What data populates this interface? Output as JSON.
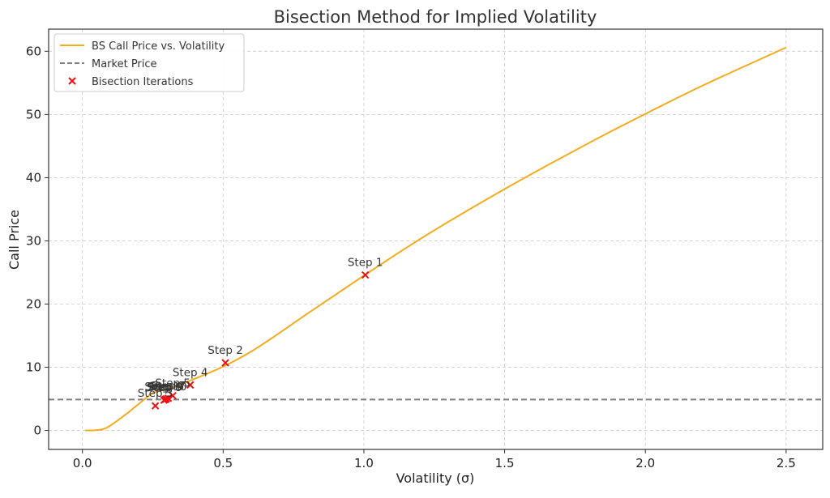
{
  "chart_data": {
    "type": "line",
    "title": "Bisection Method for Implied Volatility",
    "xlabel": "Volatility (σ)",
    "ylabel": "Call Price",
    "xlim": [
      -0.12,
      2.63
    ],
    "ylim": [
      -3,
      63.5
    ],
    "x_ticks": [
      0.0,
      0.5,
      1.0,
      1.5,
      2.0,
      2.5
    ],
    "x_tick_labels": [
      "0.0",
      "0.5",
      "1.0",
      "1.5",
      "2.0",
      "2.5"
    ],
    "y_ticks": [
      0,
      10,
      20,
      30,
      40,
      50,
      60
    ],
    "y_tick_labels": [
      "0",
      "10",
      "20",
      "30",
      "40",
      "50",
      "60"
    ],
    "grid": true,
    "legend_position": "top-left",
    "colors": {
      "curve": "#f5ab1e",
      "market": "#808080",
      "iterations": "#ee1111"
    },
    "legend": [
      {
        "label": "BS Call Price vs. Volatility",
        "kind": "line"
      },
      {
        "label": "Market Price",
        "kind": "dashed"
      },
      {
        "label": "Bisection Iterations",
        "kind": "marker"
      }
    ],
    "series": [
      {
        "name": "BS Call Price vs. Volatility",
        "x": [
          0.01,
          0.05,
          0.08,
          0.1,
          0.15,
          0.2,
          0.25,
          0.3,
          0.4,
          0.5,
          0.6,
          0.8,
          1.0,
          1.2,
          1.5,
          1.8,
          2.0,
          2.2,
          2.5
        ],
        "y": [
          0.0,
          0.05,
          0.3,
          0.8,
          2.4,
          4.2,
          5.9,
          6.5,
          8.2,
          10.1,
          12.5,
          18.5,
          24.5,
          30.3,
          38.2,
          45.5,
          50.1,
          54.5,
          60.6
        ]
      },
      {
        "name": "Market Price",
        "y": 4.9
      },
      {
        "name": "Bisection Iterations",
        "points": [
          {
            "label": "Step 1",
            "x": 1.005,
            "y": 24.6
          },
          {
            "label": "Step 2",
            "x": 0.508,
            "y": 10.7
          },
          {
            "label": "Step 3",
            "x": 0.259,
            "y": 3.9
          },
          {
            "label": "Step 4",
            "x": 0.383,
            "y": 7.2
          },
          {
            "label": "Step 5",
            "x": 0.321,
            "y": 5.5
          },
          {
            "label": "Step 6",
            "x": 0.29,
            "y": 4.8
          },
          {
            "label": "Step 7",
            "x": 0.305,
            "y": 5.1
          },
          {
            "label": "Step 8",
            "x": 0.298,
            "y": 5.0
          },
          {
            "label": "Step 9",
            "x": 0.294,
            "y": 4.9
          },
          {
            "label": "Step 10",
            "x": 0.296,
            "y": 4.95
          }
        ]
      }
    ]
  }
}
